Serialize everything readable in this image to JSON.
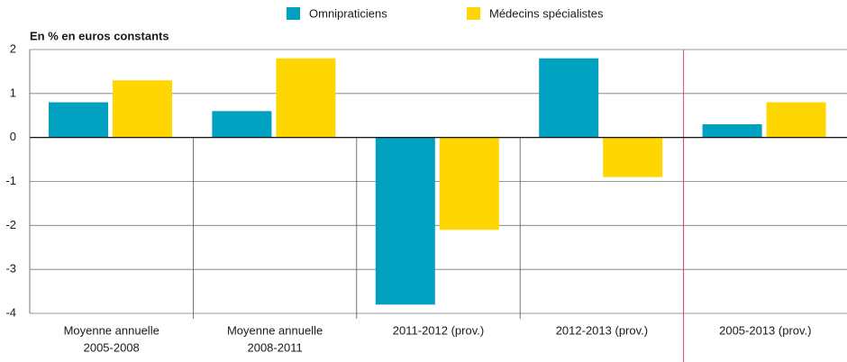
{
  "chart_data": {
    "type": "bar",
    "y_axis_label": "En % en euros constants",
    "categories": [
      [
        "Moyenne annuelle",
        "2005-2008"
      ],
      [
        "Moyenne annuelle",
        "2008-2011"
      ],
      [
        "2011-2012 (prov.)"
      ],
      [
        "2012-2013 (prov.)"
      ],
      [
        "2005-2013 (prov.)"
      ]
    ],
    "series": [
      {
        "name": "Omnipraticiens",
        "color": "#00a0c0",
        "values": [
          0.8,
          0.6,
          -3.8,
          1.8,
          0.3
        ]
      },
      {
        "name": "Médecins spécialistes",
        "color": "#ffd600",
        "values": [
          1.3,
          1.8,
          -2.1,
          -0.9,
          0.8
        ]
      }
    ],
    "ylim": [
      -4,
      2
    ],
    "yticks": [
      -4,
      -3,
      -2,
      -1,
      0,
      1,
      2
    ],
    "grid": true,
    "legend": "top"
  }
}
